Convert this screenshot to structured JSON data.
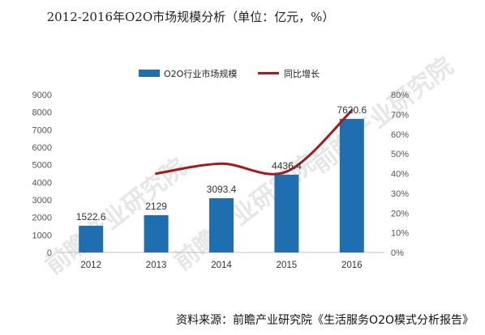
{
  "chart_data": {
    "type": "bar",
    "title": "2012-2016年O2O市场规模分析（单位：亿元，%）",
    "categories": [
      "2012",
      "2013",
      "2014",
      "2015",
      "2016"
    ],
    "series": [
      {
        "name": "O2O行业市场规模",
        "kind": "bar",
        "axis": "left",
        "values": [
          1522.6,
          2129,
          3093.4,
          4436.4,
          7620.6
        ],
        "labels": [
          "1522.6",
          "2129",
          "3093.4",
          "4436.4",
          "7620.6"
        ],
        "color": "#1f6fb0"
      },
      {
        "name": "同比增长",
        "kind": "line",
        "axis": "right",
        "values": [
          null,
          40,
          45,
          41,
          72
        ],
        "color": "#a8191b"
      }
    ],
    "ylim_left": [
      0,
      9000
    ],
    "yticks_left": [
      "0",
      "1000",
      "2000",
      "3000",
      "4000",
      "5000",
      "6000",
      "7000",
      "8000",
      "9000"
    ],
    "ylim_right": [
      0,
      80
    ],
    "yticks_right": [
      "0%",
      "10%",
      "20%",
      "30%",
      "40%",
      "50%",
      "60%",
      "70%",
      "80%"
    ],
    "legend": "top",
    "grid": false
  },
  "source_text": "资料来源：前瞻产业研究院《生活服务O2O模式分析报告》",
  "watermark": "前瞻产业研究院"
}
